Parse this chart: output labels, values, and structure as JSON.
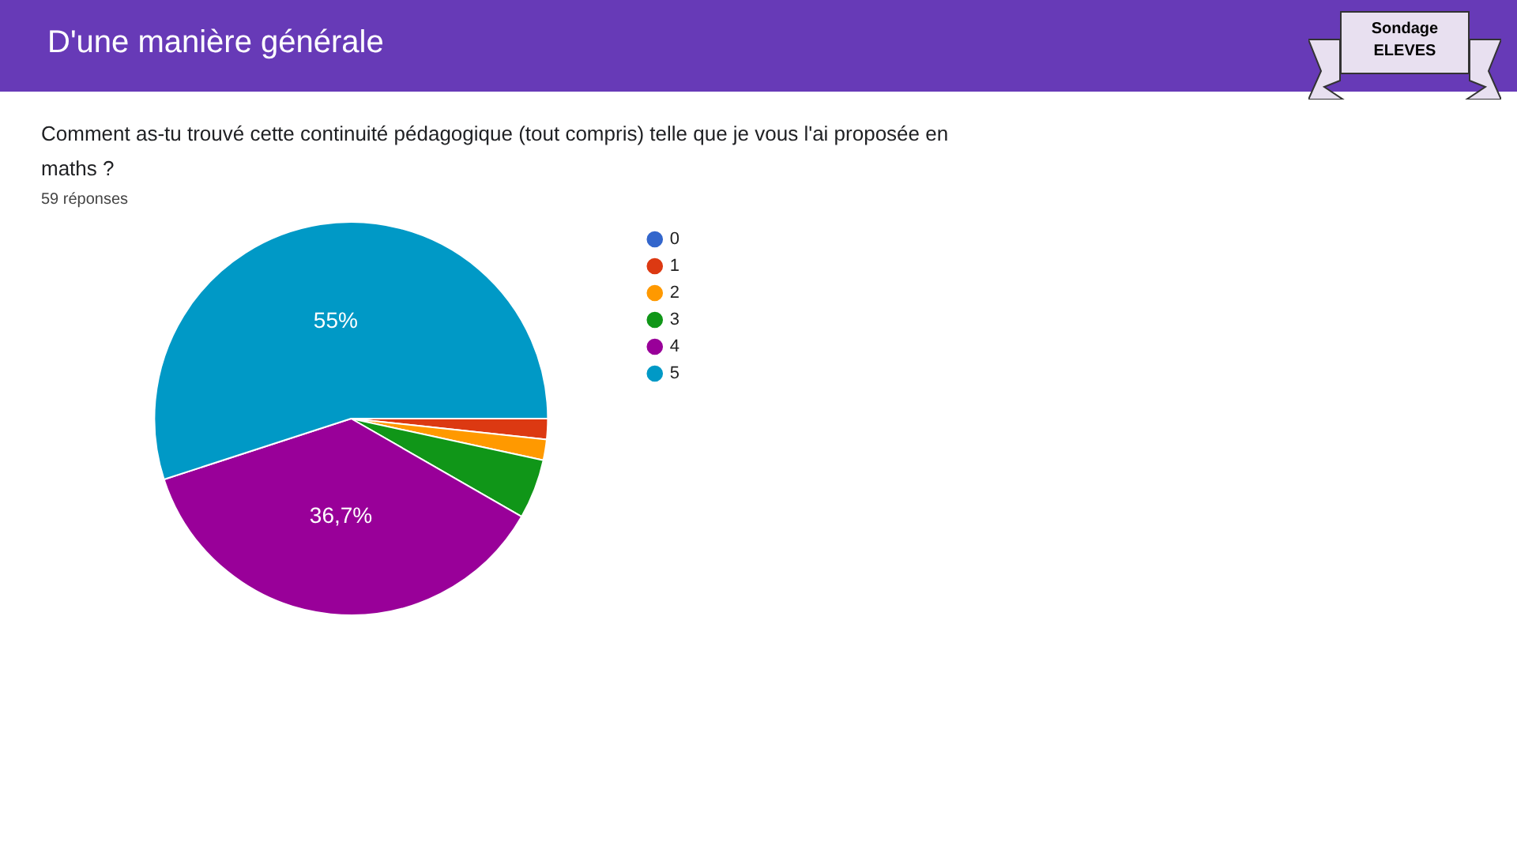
{
  "chart_data": {
    "type": "pie",
    "title": "D'une manière générale",
    "subtitle": "Comment as-tu trouvé cette continuité pédagogique (tout compris) telle que je vous l'ai proposée en maths ?",
    "annotations": [
      "59 réponses",
      "Sondage ELEVES"
    ],
    "categories": [
      "0",
      "1",
      "2",
      "3",
      "4",
      "5"
    ],
    "values": [
      0,
      1.7,
      1.7,
      4.9,
      36.7,
      55
    ],
    "colors": [
      "#3366cc",
      "#dc3912",
      "#ff9900",
      "#109618",
      "#990099",
      "#0099c6"
    ],
    "value_labels": [
      null,
      null,
      null,
      null,
      "36,7%",
      "55%"
    ],
    "legend": "right"
  }
}
